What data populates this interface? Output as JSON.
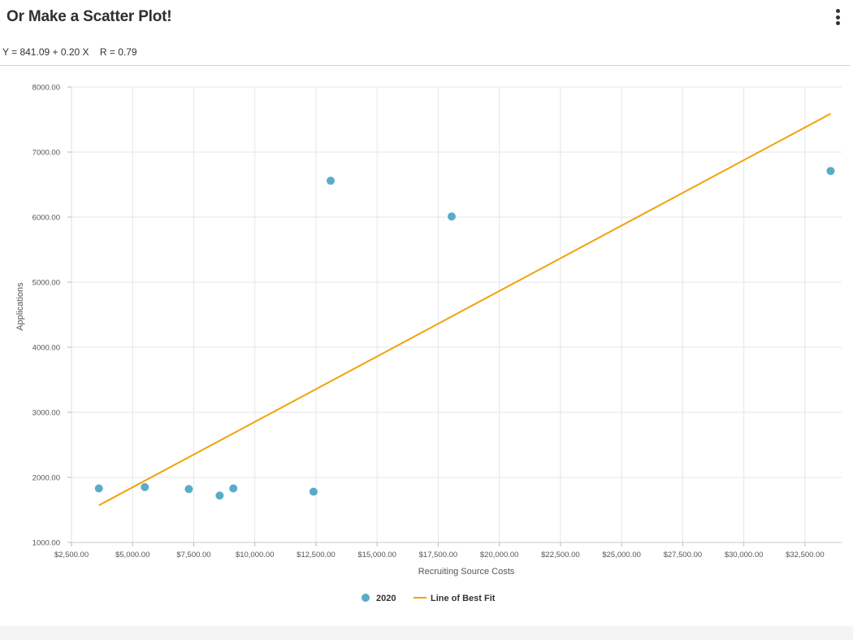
{
  "header": {
    "title": "Or Make a Scatter Plot!",
    "menu_icon": "more-vertical-icon",
    "equation": "Y = 841.09 + 0.20 X    R = 0.79"
  },
  "colors": {
    "points": "#5aabc8",
    "fit_line": "#f0a30a",
    "grid": "#e6e6ec"
  },
  "chart_data": {
    "type": "scatter",
    "xlabel": "Recruiting Source Costs",
    "ylabel": "Applications",
    "xlim": [
      2500,
      34000
    ],
    "ylim": [
      1000,
      8000
    ],
    "x_ticks": [
      2500,
      5000,
      7500,
      10000,
      12500,
      15000,
      17500,
      20000,
      22500,
      25000,
      27500,
      30000,
      32500
    ],
    "y_ticks": [
      1000,
      2000,
      3000,
      4000,
      5000,
      6000,
      7000,
      8000
    ],
    "x_tick_labels": [
      "$2,500.00",
      "$5,000.00",
      "$7,500.00",
      "$10,000.00",
      "$12,500.00",
      "$15,000.00",
      "$17,500.00",
      "$20,000.00",
      "$22,500.00",
      "$25,000.00",
      "$27,500.00",
      "$30,000.00",
      "$32,500.00"
    ],
    "y_tick_labels": [
      "1000.00",
      "2000.00",
      "3000.00",
      "4000.00",
      "5000.00",
      "6000.00",
      "7000.00",
      "8000.00"
    ],
    "grid": true,
    "legend_position": "bottom",
    "series": [
      {
        "name": "2020",
        "kind": "scatter",
        "points": [
          {
            "x": 3620,
            "y": 1830
          },
          {
            "x": 5500,
            "y": 1850
          },
          {
            "x": 7300,
            "y": 1820
          },
          {
            "x": 8560,
            "y": 1720
          },
          {
            "x": 9120,
            "y": 1830
          },
          {
            "x": 12400,
            "y": 1780
          },
          {
            "x": 13100,
            "y": 6560
          },
          {
            "x": 18050,
            "y": 6010
          },
          {
            "x": 33550,
            "y": 6710
          }
        ]
      },
      {
        "name": "Line of Best Fit",
        "kind": "line",
        "points": [
          {
            "x": 3620,
            "y": 1570
          },
          {
            "x": 33550,
            "y": 7590
          }
        ]
      }
    ]
  }
}
